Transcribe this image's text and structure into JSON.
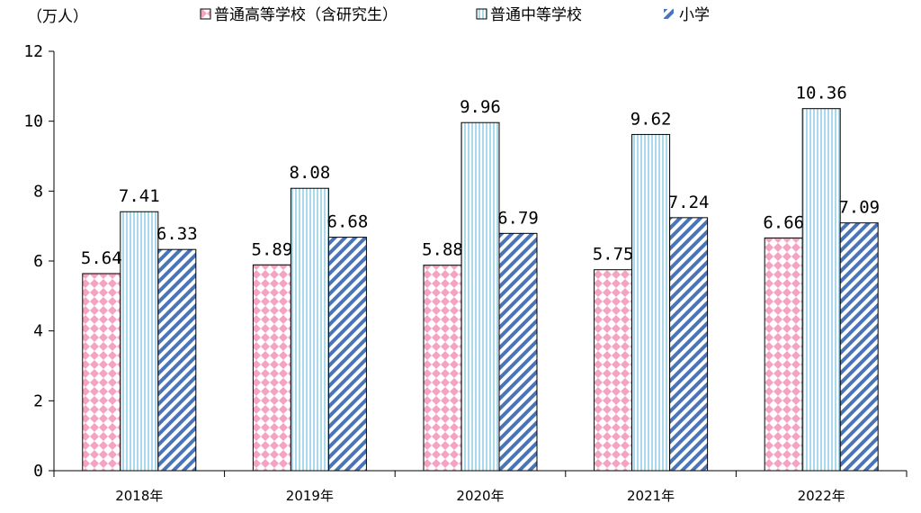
{
  "chart_data": {
    "type": "bar",
    "unit_label": "（万人）",
    "categories": [
      "2018年",
      "2019年",
      "2020年",
      "2021年",
      "2022年"
    ],
    "series": [
      {
        "name": "普通高等学校（含研究生）",
        "values": [
          5.64,
          5.89,
          5.88,
          5.75,
          6.66
        ],
        "value_labels": [
          "5.64",
          "5.89",
          "5.88",
          "5.75",
          "6.66"
        ],
        "pattern": "pink-diamond",
        "color": "#f4a3c2"
      },
      {
        "name": "普通中等学校",
        "values": [
          7.41,
          8.08,
          9.96,
          9.62,
          10.36
        ],
        "value_labels": [
          "7.41",
          "8.08",
          "9.96",
          "9.62",
          "10.36"
        ],
        "pattern": "light-blue-vertical",
        "color": "#a9d9ea"
      },
      {
        "name": "小学",
        "values": [
          6.33,
          6.68,
          6.79,
          7.24,
          7.09
        ],
        "value_labels": [
          "6.33",
          "6.68",
          "6.79",
          "7.24",
          "7.09"
        ],
        "pattern": "blue-diagonal",
        "color": "#4a74b8"
      }
    ],
    "ylim": [
      0,
      12
    ],
    "yticks": [
      "0",
      "2",
      "4",
      "6",
      "8",
      "10",
      "12"
    ],
    "legend": "top",
    "grid": false
  }
}
